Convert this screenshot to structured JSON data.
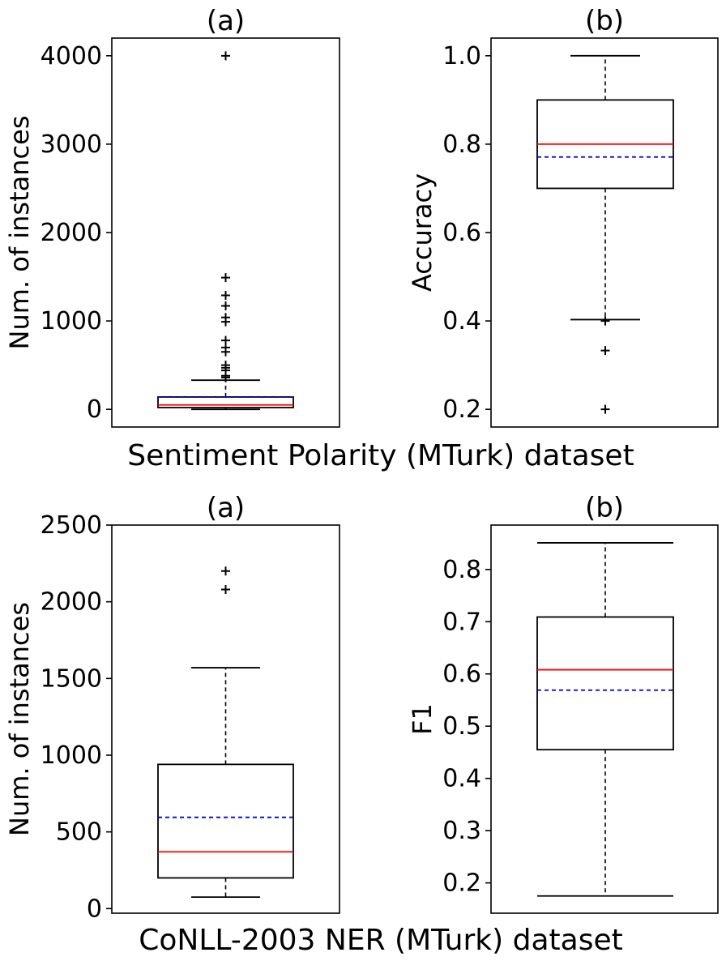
{
  "figure": {
    "section_titles": [
      "Sentiment Polarity (MTurk) dataset",
      "CoNLL-2003 NER (MTurk) dataset"
    ]
  },
  "colors": {
    "median": "#ff0000",
    "mean": "#0000cc",
    "box": "#000000",
    "whisker": "#000000",
    "flier": "#000000"
  },
  "chart_data": [
    {
      "type": "box",
      "title": "(a)",
      "xlabel": "",
      "ylabel": "Num. of instances",
      "ylim": [
        -200,
        4200
      ],
      "yticks": [
        0,
        1000,
        2000,
        3000,
        4000
      ],
      "ytick_labels": [
        "0",
        "1000",
        "2000",
        "3000",
        "4000"
      ],
      "box": {
        "whisker_low": 0,
        "q1": 20,
        "median": 50,
        "mean": 140,
        "q3": 140,
        "whisker_high": 330
      },
      "outliers": [
        4000,
        1490,
        1290,
        1170,
        1040,
        990,
        780,
        700,
        650,
        500,
        470,
        440,
        380,
        360
      ]
    },
    {
      "type": "box",
      "title": "(b)",
      "xlabel": "",
      "ylabel": "Accuracy",
      "ylim": [
        0.16,
        1.04
      ],
      "yticks": [
        0.2,
        0.4,
        0.6,
        0.8,
        1.0
      ],
      "ytick_labels": [
        "0.2",
        "0.4",
        "0.6",
        "0.8",
        "1.0"
      ],
      "box": {
        "whisker_low": 0.403,
        "q1": 0.7,
        "median": 0.8,
        "mean": 0.771,
        "q3": 0.9,
        "whisker_high": 1.0
      },
      "outliers": [
        0.4,
        0.333,
        0.2
      ]
    },
    {
      "type": "box",
      "title": "(a)",
      "xlabel": "",
      "ylabel": "Num. of instances",
      "ylim": [
        -30,
        2500
      ],
      "yticks": [
        0,
        500,
        1000,
        1500,
        2000,
        2500
      ],
      "ytick_labels": [
        "0",
        "500",
        "1000",
        "1500",
        "2000",
        "2500"
      ],
      "box": {
        "whisker_low": 75,
        "q1": 200,
        "median": 370,
        "mean": 595,
        "q3": 940,
        "whisker_high": 1570
      },
      "outliers": [
        2200,
        2080
      ]
    },
    {
      "type": "box",
      "title": "(b)",
      "xlabel": "",
      "ylabel": "F1",
      "ylim": [
        0.142,
        0.885
      ],
      "yticks": [
        0.2,
        0.3,
        0.4,
        0.5,
        0.6,
        0.7,
        0.8
      ],
      "ytick_labels": [
        "0.2",
        "0.3",
        "0.4",
        "0.5",
        "0.6",
        "0.7",
        "0.8"
      ],
      "box": {
        "whisker_low": 0.175,
        "q1": 0.455,
        "median": 0.608,
        "mean": 0.569,
        "q3": 0.709,
        "whisker_high": 0.851
      },
      "outliers": []
    }
  ]
}
